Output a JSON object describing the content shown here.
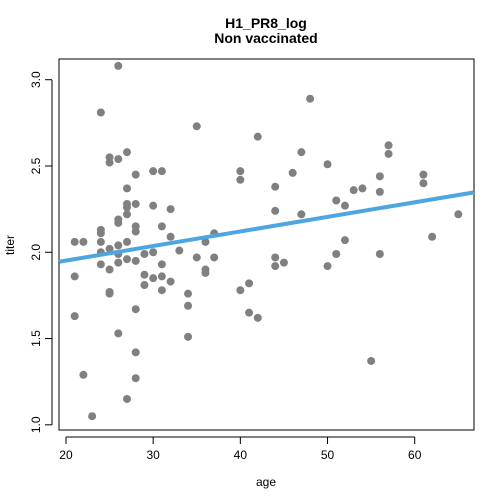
{
  "chart_data": {
    "type": "scatter",
    "title": "H1_PR8_log",
    "subtitle": "Non vaccinated",
    "xlabel": "age",
    "ylabel": "titer",
    "xlim": [
      19.2,
      66.8
    ],
    "ylim": [
      0.97,
      3.12
    ],
    "xticks": [
      20,
      30,
      40,
      50,
      60
    ],
    "yticks": [
      1.0,
      1.5,
      2.0,
      2.5,
      3.0
    ],
    "ytick_labels": [
      "1.0",
      "1.5",
      "2.0",
      "2.5",
      "3.0"
    ],
    "grid": false,
    "point_color": "#808080",
    "line_color": "#4da6e0",
    "trend_line": {
      "x": [
        19.2,
        66.8
      ],
      "y": [
        1.945,
        2.347
      ]
    },
    "points": [
      [
        21,
        2.06
      ],
      [
        21,
        1.86
      ],
      [
        21,
        1.63
      ],
      [
        22,
        2.06
      ],
      [
        22,
        1.29
      ],
      [
        23,
        1.05
      ],
      [
        24,
        2.81
      ],
      [
        24,
        2.13
      ],
      [
        24,
        2.11
      ],
      [
        24,
        2.06
      ],
      [
        24,
        1.93
      ],
      [
        24,
        2.0
      ],
      [
        25,
        2.55
      ],
      [
        25,
        2.52
      ],
      [
        25,
        2.02
      ],
      [
        25,
        1.9
      ],
      [
        25,
        1.77
      ],
      [
        25,
        1.76
      ],
      [
        26,
        3.08
      ],
      [
        26,
        2.54
      ],
      [
        26,
        2.19
      ],
      [
        26,
        2.17
      ],
      [
        26,
        2.04
      ],
      [
        26,
        1.99
      ],
      [
        26,
        1.94
      ],
      [
        26,
        1.53
      ],
      [
        27,
        2.58
      ],
      [
        27,
        2.37
      ],
      [
        27,
        2.28
      ],
      [
        27,
        2.26
      ],
      [
        27,
        2.22
      ],
      [
        27,
        2.06
      ],
      [
        27,
        1.96
      ],
      [
        27,
        1.15
      ],
      [
        28,
        2.45
      ],
      [
        28,
        2.28
      ],
      [
        28,
        2.15
      ],
      [
        28,
        2.12
      ],
      [
        28,
        1.95
      ],
      [
        28,
        1.67
      ],
      [
        28,
        1.42
      ],
      [
        28,
        1.27
      ],
      [
        29,
        1.99
      ],
      [
        29,
        1.87
      ],
      [
        29,
        1.81
      ],
      [
        30,
        2.47
      ],
      [
        30,
        2.27
      ],
      [
        30,
        2.0
      ],
      [
        30,
        1.85
      ],
      [
        31,
        2.47
      ],
      [
        31,
        2.15
      ],
      [
        31,
        1.93
      ],
      [
        31,
        1.86
      ],
      [
        31,
        1.78
      ],
      [
        32,
        2.25
      ],
      [
        32,
        2.09
      ],
      [
        32,
        1.83
      ],
      [
        33,
        2.01
      ],
      [
        34,
        1.76
      ],
      [
        34,
        1.69
      ],
      [
        34,
        1.51
      ],
      [
        35,
        2.73
      ],
      [
        35,
        1.97
      ],
      [
        36,
        2.06
      ],
      [
        36,
        1.9
      ],
      [
        36,
        1.88
      ],
      [
        37,
        2.11
      ],
      [
        37,
        1.97
      ],
      [
        40,
        2.47
      ],
      [
        40,
        2.42
      ],
      [
        40,
        1.78
      ],
      [
        41,
        1.82
      ],
      [
        41,
        1.65
      ],
      [
        42,
        2.67
      ],
      [
        42,
        1.62
      ],
      [
        44,
        2.38
      ],
      [
        44,
        2.24
      ],
      [
        44,
        1.97
      ],
      [
        44,
        1.92
      ],
      [
        45,
        1.94
      ],
      [
        46,
        2.46
      ],
      [
        47,
        2.58
      ],
      [
        47,
        2.22
      ],
      [
        48,
        2.89
      ],
      [
        50,
        2.51
      ],
      [
        50,
        1.92
      ],
      [
        51,
        2.3
      ],
      [
        51,
        1.99
      ],
      [
        52,
        2.27
      ],
      [
        52,
        2.07
      ],
      [
        53,
        2.36
      ],
      [
        54,
        2.37
      ],
      [
        55,
        1.37
      ],
      [
        56,
        2.44
      ],
      [
        56,
        2.35
      ],
      [
        56,
        1.99
      ],
      [
        57,
        2.62
      ],
      [
        57,
        2.57
      ],
      [
        61,
        2.45
      ],
      [
        61,
        2.4
      ],
      [
        62,
        2.09
      ],
      [
        65,
        2.22
      ]
    ]
  }
}
